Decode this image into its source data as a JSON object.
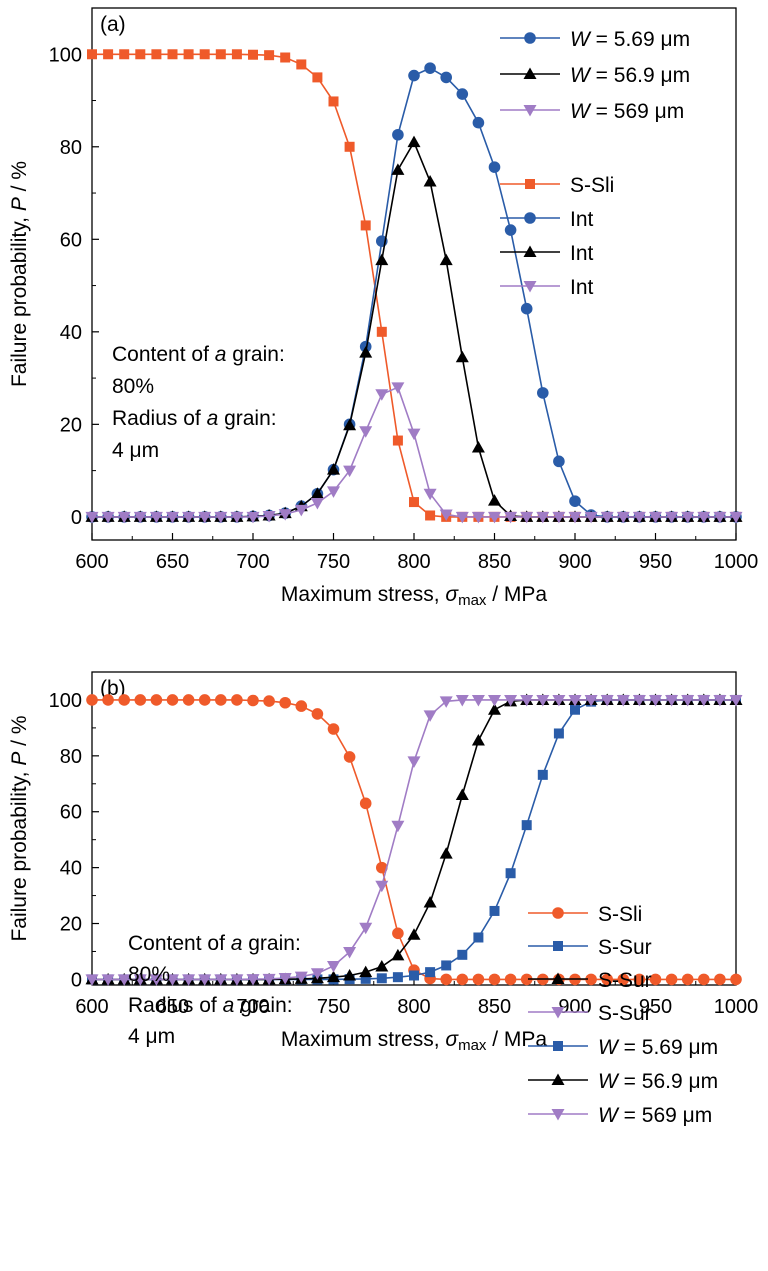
{
  "colors": {
    "orange": "#ef5a2a",
    "blue": "#2a5ca8",
    "black": "#000000",
    "purple": "#a07cc5"
  },
  "chart_data": [
    {
      "panel": "(a)",
      "type": "line",
      "xlabel_pre": "Maximum stress, ",
      "xlabel_sym": "σ",
      "xlabel_sub": "max",
      "xlabel_post": " / MPa",
      "ylabel_pre": "Failure probability, ",
      "ylabel_sym": "P",
      "ylabel_post": " / %",
      "xlim": [
        600,
        1000
      ],
      "ylim": [
        -5,
        110
      ],
      "xticks": [
        600,
        650,
        700,
        750,
        800,
        850,
        900,
        950,
        1000
      ],
      "yticks": [
        0,
        20,
        40,
        60,
        80,
        100
      ],
      "annotation": [
        "Content of a grain:",
        "80%",
        "Radius of a grain:",
        "4 μm"
      ],
      "legend_w": [
        "W = 5.69 μm",
        "W = 56.9 μm",
        "W = 569 μm"
      ],
      "series": [
        {
          "name": "S-Sli",
          "color": "#ef5a2a",
          "marker": "square",
          "x": [
            600,
            610,
            620,
            630,
            640,
            650,
            660,
            670,
            680,
            690,
            700,
            710,
            720,
            730,
            740,
            750,
            760,
            770,
            780,
            790,
            800,
            810,
            820,
            830,
            840,
            850,
            860,
            870,
            880,
            890,
            900,
            910,
            920,
            930,
            940,
            950,
            960,
            970,
            980,
            990,
            1000
          ],
          "y": [
            100,
            100,
            100,
            100,
            100,
            100,
            100,
            100,
            100,
            100,
            99.9,
            99.8,
            99.3,
            97.8,
            95,
            89.8,
            80,
            63,
            40,
            16.5,
            3.2,
            0.3,
            0,
            0,
            0,
            0,
            0,
            0,
            0,
            0,
            0,
            0,
            0,
            0,
            0,
            0,
            0,
            0,
            0,
            0,
            0
          ]
        },
        {
          "name": "Int",
          "color": "#2a5ca8",
          "marker": "circle",
          "x": [
            600,
            610,
            620,
            630,
            640,
            650,
            660,
            670,
            680,
            690,
            700,
            710,
            720,
            730,
            740,
            750,
            760,
            770,
            780,
            790,
            800,
            810,
            820,
            830,
            840,
            850,
            860,
            870,
            880,
            890,
            900,
            910,
            920,
            930,
            940,
            950,
            960,
            970,
            980,
            990,
            1000
          ],
          "y": [
            0,
            0,
            0,
            0,
            0,
            0,
            0,
            0,
            0,
            0,
            0.1,
            0.3,
            0.8,
            2.3,
            5,
            10.2,
            20,
            36.8,
            59.6,
            82.6,
            95.4,
            97,
            95,
            91.4,
            85.2,
            75.6,
            62,
            45,
            26.8,
            12,
            3.4,
            0.4,
            0,
            0,
            0,
            0,
            0,
            0,
            0,
            0,
            0
          ]
        },
        {
          "name": "Int",
          "color": "#000000",
          "marker": "triangle-up",
          "x": [
            600,
            610,
            620,
            630,
            640,
            650,
            660,
            670,
            680,
            690,
            700,
            710,
            720,
            730,
            740,
            750,
            760,
            770,
            780,
            790,
            800,
            810,
            820,
            830,
            840,
            850,
            860,
            870,
            880,
            890,
            900,
            910,
            920,
            930,
            940,
            950,
            960,
            970,
            980,
            990,
            1000
          ],
          "y": [
            0,
            0,
            0,
            0,
            0,
            0,
            0,
            0,
            0,
            0,
            0.1,
            0.3,
            0.8,
            2.3,
            5,
            10.2,
            19.8,
            35.5,
            55.5,
            75,
            81,
            72.5,
            55.5,
            34.5,
            15,
            3.5,
            0.2,
            0,
            0,
            0,
            0,
            0,
            0,
            0,
            0,
            0,
            0,
            0,
            0,
            0,
            0
          ]
        },
        {
          "name": "Int",
          "color": "#a07cc5",
          "marker": "triangle-down",
          "x": [
            600,
            610,
            620,
            630,
            640,
            650,
            660,
            670,
            680,
            690,
            700,
            710,
            720,
            730,
            740,
            750,
            760,
            770,
            780,
            790,
            800,
            810,
            820,
            830,
            840,
            850,
            860,
            870,
            880,
            890,
            900,
            910,
            920,
            930,
            940,
            950,
            960,
            970,
            980,
            990,
            1000
          ],
          "y": [
            0,
            0,
            0,
            0,
            0,
            0,
            0,
            0,
            0,
            0,
            0,
            0.2,
            0.6,
            1.5,
            3,
            5.5,
            10,
            18.5,
            26.5,
            28,
            18,
            5,
            0.5,
            0,
            0,
            0,
            0,
            0,
            0,
            0,
            0,
            0,
            0,
            0,
            0,
            0,
            0,
            0,
            0,
            0,
            0
          ]
        }
      ]
    },
    {
      "panel": "(b)",
      "type": "line",
      "xlabel_pre": "Maximum stress, ",
      "xlabel_sym": "σ",
      "xlabel_sub": "max",
      "xlabel_post": " / MPa",
      "ylabel_pre": "Failure probability, ",
      "ylabel_sym": "P",
      "ylabel_post": " / %",
      "xlim": [
        600,
        1000
      ],
      "ylim": [
        -2,
        110
      ],
      "xticks": [
        600,
        650,
        700,
        750,
        800,
        850,
        900,
        950,
        1000
      ],
      "yticks": [
        0,
        20,
        40,
        60,
        80,
        100
      ],
      "annotation": [
        "Content of a grain:",
        "80%",
        "Radius of a grain:",
        "4 μm"
      ],
      "legend_w": [
        "W = 5.69 μm",
        "W = 56.9 μm",
        "W = 569 μm"
      ],
      "series": [
        {
          "name": "S-Sli",
          "color": "#ef5a2a",
          "marker": "circle",
          "x": [
            600,
            610,
            620,
            630,
            640,
            650,
            660,
            670,
            680,
            690,
            700,
            710,
            720,
            730,
            740,
            750,
            760,
            770,
            780,
            790,
            800,
            810,
            820,
            830,
            840,
            850,
            860,
            870,
            880,
            890,
            900,
            910,
            920,
            930,
            940,
            950,
            960,
            970,
            980,
            990,
            1000
          ],
          "y": [
            100,
            100,
            100,
            100,
            100,
            100,
            100,
            100,
            100,
            100,
            99.8,
            99.6,
            99,
            97.8,
            95,
            89.6,
            79.6,
            63,
            40,
            16.5,
            3.3,
            0.3,
            0,
            0,
            0,
            0,
            0,
            0,
            0,
            0,
            0,
            0,
            0,
            0,
            0,
            0,
            0,
            0,
            0,
            0,
            0
          ]
        },
        {
          "name": "S-Sur",
          "color": "#2a5ca8",
          "marker": "square",
          "x": [
            600,
            610,
            620,
            630,
            640,
            650,
            660,
            670,
            680,
            690,
            700,
            710,
            720,
            730,
            740,
            750,
            760,
            770,
            780,
            790,
            800,
            810,
            820,
            830,
            840,
            850,
            860,
            870,
            880,
            890,
            900,
            910,
            920,
            930,
            940,
            950,
            960,
            970,
            980,
            990,
            1000
          ],
          "y": [
            0,
            0,
            0,
            0,
            0,
            0,
            0,
            0,
            0,
            0,
            0,
            0,
            0,
            0,
            0,
            0,
            0.1,
            0.2,
            0.4,
            0.8,
            1.4,
            2.6,
            5,
            8.8,
            15,
            24.5,
            38,
            55.2,
            73.2,
            88,
            96.5,
            99.4,
            100,
            100,
            100,
            100,
            100,
            100,
            100,
            100,
            100
          ]
        },
        {
          "name": "S-Sur",
          "color": "#000000",
          "marker": "triangle-up",
          "x": [
            600,
            610,
            620,
            630,
            640,
            650,
            660,
            670,
            680,
            690,
            700,
            710,
            720,
            730,
            740,
            750,
            760,
            770,
            780,
            790,
            800,
            810,
            820,
            830,
            840,
            850,
            860,
            870,
            880,
            890,
            900,
            910,
            920,
            930,
            940,
            950,
            960,
            970,
            980,
            990,
            1000
          ],
          "y": [
            0,
            0,
            0,
            0,
            0,
            0,
            0,
            0,
            0,
            0,
            0,
            0,
            0.1,
            0.2,
            0.4,
            0.8,
            1.4,
            2.6,
            4.6,
            8.6,
            16,
            27.5,
            45,
            66,
            85.5,
            96.5,
            99.5,
            100,
            100,
            100,
            100,
            100,
            100,
            100,
            100,
            100,
            100,
            100,
            100,
            100,
            100
          ]
        },
        {
          "name": "S-Sur",
          "color": "#a07cc5",
          "marker": "triangle-down",
          "x": [
            600,
            610,
            620,
            630,
            640,
            650,
            660,
            670,
            680,
            690,
            700,
            710,
            720,
            730,
            740,
            750,
            760,
            770,
            780,
            790,
            800,
            810,
            820,
            830,
            840,
            850,
            860,
            870,
            880,
            890,
            900,
            910,
            920,
            930,
            940,
            950,
            960,
            970,
            980,
            990,
            1000
          ],
          "y": [
            0,
            0,
            0,
            0,
            0,
            0,
            0,
            0,
            0,
            0,
            0.1,
            0.2,
            0.5,
            1,
            2.2,
            4.8,
            9.8,
            18.5,
            33.5,
            55,
            78,
            94.5,
            99.5,
            100,
            100,
            100,
            100,
            100,
            100,
            100,
            100,
            100,
            100,
            100,
            100,
            100,
            100,
            100,
            100,
            100,
            100
          ]
        }
      ]
    }
  ]
}
